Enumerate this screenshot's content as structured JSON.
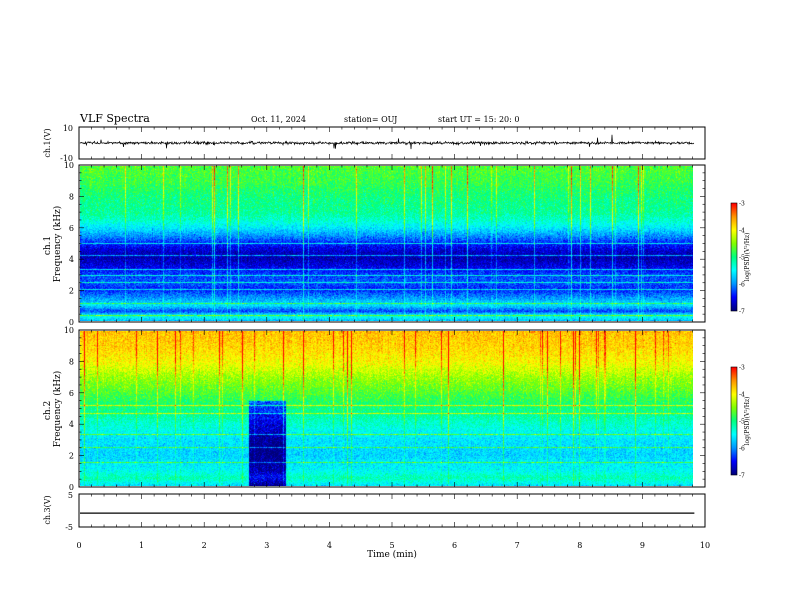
{
  "header": {
    "title": "VLF Spectra",
    "date": "Oct. 11, 2024",
    "station": "station= OUJ",
    "start": "start  UT =   15: 20: 0"
  },
  "colors": {
    "scale": [
      "#00007a",
      "#0000ff",
      "#0096ff",
      "#00ffff",
      "#00ff80",
      "#80ff00",
      "#ffff00",
      "#ff9600",
      "#ff0000",
      "#ffffff"
    ],
    "trace": "#000000"
  },
  "chart_data": [
    {
      "type": "line",
      "name": "ch1-waveform",
      "ylabel": "ch.1(V)",
      "ylim": [
        -10,
        10
      ],
      "yticks": [
        "10",
        "-10"
      ],
      "x_range": [
        0,
        9.83
      ],
      "y_level": 0,
      "noise_amplitude": 2.5
    },
    {
      "type": "heatmap",
      "name": "ch1-spectrogram",
      "ylabel": "ch.1\nFrequency (kHz)",
      "xlim": [
        0,
        10
      ],
      "ylim": [
        0,
        10
      ],
      "yticks": [
        "0",
        "2",
        "4",
        "6",
        "8",
        "10"
      ],
      "x_extent": [
        0,
        9.83
      ],
      "colorbar": {
        "label": "log(PSD)(V²/Hz)",
        "range": [
          -7,
          -3
        ],
        "ticks": [
          "-3",
          "-4",
          "-5",
          "-6",
          "-7"
        ]
      },
      "frequency_profile": [
        {
          "f": 0.0,
          "v": -5.8
        },
        {
          "f": 0.3,
          "v": -5.4
        },
        {
          "f": 0.6,
          "v": -6.3
        },
        {
          "f": 1.0,
          "v": -5.6
        },
        {
          "f": 1.5,
          "v": -6.0
        },
        {
          "f": 2.0,
          "v": -6.4
        },
        {
          "f": 2.5,
          "v": -6.2
        },
        {
          "f": 3.0,
          "v": -6.3
        },
        {
          "f": 3.5,
          "v": -6.6
        },
        {
          "f": 4.0,
          "v": -6.8
        },
        {
          "f": 4.5,
          "v": -6.7
        },
        {
          "f": 5.0,
          "v": -6.4
        },
        {
          "f": 5.5,
          "v": -6.0
        },
        {
          "f": 6.0,
          "v": -5.6
        },
        {
          "f": 6.5,
          "v": -5.3
        },
        {
          "f": 7.0,
          "v": -5.1
        },
        {
          "f": 8.0,
          "v": -5.0
        },
        {
          "f": 9.0,
          "v": -4.8
        },
        {
          "f": 10.0,
          "v": -4.7
        }
      ],
      "line_frequencies_khz": [
        0.3,
        1.1,
        2.0,
        2.45,
        2.95,
        3.3,
        4.2,
        5.0
      ]
    },
    {
      "type": "heatmap",
      "name": "ch2-spectrogram",
      "ylabel": "ch.2\nFrequency (kHz)",
      "xlim": [
        0,
        10
      ],
      "ylim": [
        0,
        10
      ],
      "yticks": [
        "0",
        "2",
        "4",
        "6",
        "8",
        "10"
      ],
      "x_extent": [
        0,
        9.83
      ],
      "colorbar": {
        "label": "log(PSD)(V²/Hz)",
        "range": [
          -7,
          -3
        ],
        "ticks": [
          "-3",
          "-4",
          "-5",
          "-6",
          "-7"
        ]
      },
      "frequency_profile": [
        {
          "f": 0.0,
          "v": -5.6
        },
        {
          "f": 0.5,
          "v": -5.2
        },
        {
          "f": 1.0,
          "v": -5.5
        },
        {
          "f": 2.0,
          "v": -5.7
        },
        {
          "f": 3.0,
          "v": -5.6
        },
        {
          "f": 4.0,
          "v": -5.3
        },
        {
          "f": 5.0,
          "v": -5.0
        },
        {
          "f": 6.0,
          "v": -4.7
        },
        {
          "f": 7.0,
          "v": -4.4
        },
        {
          "f": 8.0,
          "v": -4.0
        },
        {
          "f": 9.0,
          "v": -3.8
        },
        {
          "f": 10.0,
          "v": -3.7
        }
      ],
      "low_interval_min": [
        2.7,
        3.3
      ],
      "line_frequencies_khz": [
        1.5,
        2.45,
        3.3,
        4.7,
        5.2
      ]
    },
    {
      "type": "line",
      "name": "ch3-waveform",
      "ylabel": "ch.3(V)",
      "ylim": [
        -5,
        5
      ],
      "yticks": [
        "5",
        "0",
        "-5"
      ],
      "x_range": [
        0,
        9.83
      ],
      "y_level": -0.8
    }
  ],
  "xaxis": {
    "label": "Time (min)",
    "ticks": [
      "0",
      "1",
      "2",
      "3",
      "4",
      "5",
      "6",
      "7",
      "8",
      "9",
      "10"
    ],
    "range": [
      0,
      10
    ]
  }
}
